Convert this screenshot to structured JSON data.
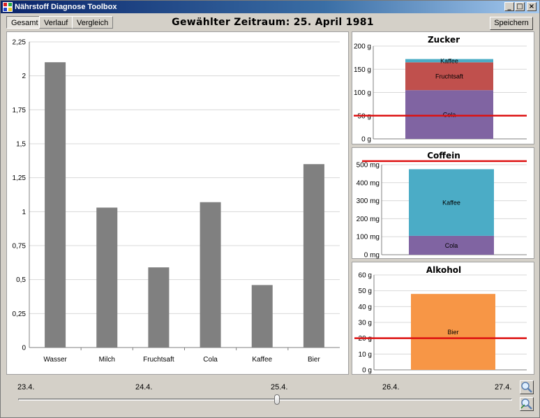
{
  "window": {
    "title": "Nährstoff Diagnose Toolbox",
    "controls": [
      "_",
      "□",
      "×"
    ]
  },
  "tabs": [
    {
      "label": "Gesamt",
      "active": true
    },
    {
      "label": "Verlauf",
      "active": false
    },
    {
      "label": "Vergleich",
      "active": false
    }
  ],
  "header": {
    "title": "Gewählter Zeitraum: 25. April 1981",
    "save_label": "Speichern"
  },
  "chart_data": [
    {
      "type": "bar",
      "categories": [
        "Wasser",
        "Milch",
        "Fruchtsaft",
        "Cola",
        "Kaffee",
        "Bier"
      ],
      "values": [
        2.1,
        1.03,
        0.59,
        1.07,
        0.46,
        1.35
      ],
      "yticks": [
        "0",
        "0,25",
        "0,5",
        "0,75",
        "1",
        "1,25",
        "1,5",
        "1,75",
        "2",
        "2,25"
      ],
      "ylim": [
        0,
        2.25
      ],
      "grid": true,
      "color": "#808080"
    },
    {
      "type": "bar",
      "stacked": true,
      "title": "Zucker",
      "yticks": [
        "0 g",
        "50 g",
        "100 g",
        "150 g",
        "200 g"
      ],
      "ylim": [
        0,
        200
      ],
      "limit": 50,
      "limit_color": "#dd1111",
      "series": [
        {
          "name": "Cola",
          "value": 105,
          "color": "#8064a2"
        },
        {
          "name": "Fruchtsaft",
          "value": 60,
          "color": "#c0504d"
        },
        {
          "name": "Kaffee",
          "value": 7,
          "color": "#4bacc6"
        }
      ]
    },
    {
      "type": "bar",
      "stacked": true,
      "title": "Coffein",
      "yticks": [
        "0 mg",
        "100 mg",
        "200 mg",
        "300 mg",
        "400 mg",
        "500 mg"
      ],
      "ylim": [
        0,
        500
      ],
      "limit": 520,
      "limit_color": "#dd1111",
      "series": [
        {
          "name": "Cola",
          "value": 105,
          "color": "#8064a2"
        },
        {
          "name": "Kaffee",
          "value": 370,
          "color": "#4bacc6"
        }
      ]
    },
    {
      "type": "bar",
      "stacked": true,
      "title": "Alkohol",
      "yticks": [
        "0  g",
        "10  g",
        "20  g",
        "30  g",
        "40  g",
        "50  g",
        "60  g"
      ],
      "ylim": [
        0,
        60
      ],
      "limit": 20,
      "limit_color": "#dd1111",
      "series": [
        {
          "name": "Bier",
          "value": 48,
          "color": "#f79646"
        }
      ]
    }
  ],
  "timeline": {
    "labels": [
      "23.4.",
      "24.4.",
      "25.4.",
      "26.4.",
      "27.4."
    ],
    "selected_index": 2
  },
  "icons": {
    "zoom_in": "zoom-in-icon",
    "zoom_out": "zoom-out-icon"
  }
}
